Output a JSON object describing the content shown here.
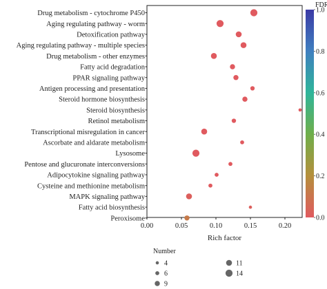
{
  "chart_data": {
    "type": "scatter",
    "xlabel": "Rich factor",
    "xlim": [
      0,
      0.225
    ],
    "xticks": [
      "0.00",
      "0.05",
      "0.10",
      "0.15",
      "0.20"
    ],
    "xtick_values": [
      0,
      0.05,
      0.1,
      0.15,
      0.2
    ],
    "categories": [
      "Drug metabolism - cytochrome P450",
      "Aging regulating pathway - worm",
      "Detoxification pathway",
      "Aging regulating pathway - multiple species",
      "Drug metabolism - other enzymes",
      "Fatty acid degradation",
      "PPAR signaling pathway",
      "Antigen processing and presentation",
      "Steroid hormone biosynthesis",
      "Steroid biosynthesis",
      "Retinol metabolism",
      "Transcriptional misregulation in cancer",
      "Ascorbate and aldarate metabolism",
      "Lysosome",
      "Pentose and glucuronate interconversions",
      "Adipocytokine signaling pathway",
      "Cysteine and methionine metabolism",
      "MAPK signaling pathway",
      "Fatty acid biosynthesis",
      "Peroxisome"
    ],
    "points": [
      {
        "category": "Drug metabolism - cytochrome P450",
        "rich_factor": 0.155,
        "number": 14,
        "fdr": 0.0
      },
      {
        "category": "Aging regulating pathway - worm",
        "rich_factor": 0.106,
        "number": 14,
        "fdr": 0.0
      },
      {
        "category": "Detoxification pathway",
        "rich_factor": 0.133,
        "number": 11,
        "fdr": 0.0
      },
      {
        "category": "Aging regulating pathway - multiple species",
        "rich_factor": 0.14,
        "number": 11,
        "fdr": 0.0
      },
      {
        "category": "Drug metabolism - other enzymes",
        "rich_factor": 0.097,
        "number": 11,
        "fdr": 0.0
      },
      {
        "category": "Fatty acid degradation",
        "rich_factor": 0.124,
        "number": 9,
        "fdr": 0.0
      },
      {
        "category": "PPAR signaling pathway",
        "rich_factor": 0.129,
        "number": 9,
        "fdr": 0.0
      },
      {
        "category": "Antigen processing and presentation",
        "rich_factor": 0.153,
        "number": 7,
        "fdr": 0.0
      },
      {
        "category": "Steroid hormone biosynthesis",
        "rich_factor": 0.142,
        "number": 9,
        "fdr": 0.0
      },
      {
        "category": "Steroid biosynthesis",
        "rich_factor": 0.222,
        "number": 4,
        "fdr": 0.0
      },
      {
        "category": "Retinol metabolism",
        "rich_factor": 0.126,
        "number": 7,
        "fdr": 0.0
      },
      {
        "category": "Transcriptional misregulation in cancer",
        "rich_factor": 0.083,
        "number": 11,
        "fdr": 0.0
      },
      {
        "category": "Ascorbate and aldarate metabolism",
        "rich_factor": 0.138,
        "number": 6,
        "fdr": 0.0
      },
      {
        "category": "Lysosome",
        "rich_factor": 0.071,
        "number": 14,
        "fdr": 0.0
      },
      {
        "category": "Pentose and glucuronate interconversions",
        "rich_factor": 0.121,
        "number": 6,
        "fdr": 0.0
      },
      {
        "category": "Adipocytokine signaling pathway",
        "rich_factor": 0.101,
        "number": 6,
        "fdr": 0.0
      },
      {
        "category": "Cysteine and methionine metabolism",
        "rich_factor": 0.092,
        "number": 6,
        "fdr": 0.0
      },
      {
        "category": "MAPK signaling pathway",
        "rich_factor": 0.061,
        "number": 11,
        "fdr": 0.02
      },
      {
        "category": "Fatty acid biosynthesis",
        "rich_factor": 0.15,
        "number": 4,
        "fdr": 0.02
      },
      {
        "category": "Peroxisome",
        "rich_factor": 0.058,
        "number": 9,
        "fdr": 0.12
      }
    ],
    "color_legend": {
      "title": "FDR",
      "ticks": [
        "0.0",
        "0.2",
        "0.4",
        "0.6",
        "0.8",
        "1.0"
      ],
      "tick_values": [
        0,
        0.2,
        0.4,
        0.6,
        0.8,
        1.0
      ],
      "range": [
        0,
        1
      ],
      "colors": [
        "#e05a5f",
        "#b58f3c",
        "#6fae4a",
        "#2fb59a",
        "#3f7fbf",
        "#3b3aa6"
      ],
      "placement": "right"
    },
    "size_legend": {
      "title": "Number",
      "entries": [
        {
          "label": "4",
          "value": 4
        },
        {
          "label": "6",
          "value": 6
        },
        {
          "label": "9",
          "value": 9
        },
        {
          "label": "11",
          "value": 11
        },
        {
          "label": "14",
          "value": 14
        }
      ],
      "placement": "bottom",
      "color": "#666666"
    },
    "grid": false
  }
}
